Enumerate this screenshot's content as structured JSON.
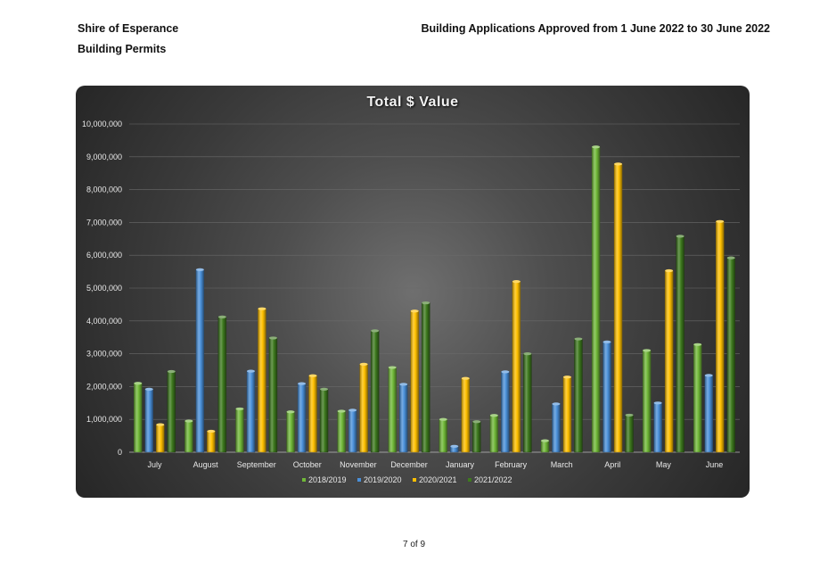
{
  "header": {
    "organisation": "Shire of Esperance",
    "department": "Building Permits",
    "report_title": "Building Applications Approved from 1 June 2022 to 30 June 2022"
  },
  "footer": {
    "page": "7 of 9"
  },
  "chart_data": {
    "type": "bar",
    "title": "Total $ Value",
    "xlabel": "",
    "ylabel": "",
    "ylim": [
      0,
      10000000
    ],
    "y_ticks": [
      "0",
      "1,000,000",
      "2,000,000",
      "3,000,000",
      "4,000,000",
      "5,000,000",
      "6,000,000",
      "7,000,000",
      "8,000,000",
      "9,000,000",
      "10,000,000"
    ],
    "grid": true,
    "legend_position": "bottom",
    "categories": [
      "July",
      "August",
      "September",
      "October",
      "November",
      "December",
      "January",
      "February",
      "March",
      "April",
      "May",
      "June"
    ],
    "series": [
      {
        "name": "2018/2019",
        "color": "#70b838",
        "values": [
          2100000,
          950000,
          1320000,
          1230000,
          1250000,
          2580000,
          1000000,
          1120000,
          350000,
          9300000,
          3100000,
          3280000
        ]
      },
      {
        "name": "2019/2020",
        "color": "#4a90d9",
        "values": [
          1920000,
          5560000,
          2470000,
          2090000,
          1280000,
          2070000,
          180000,
          2450000,
          1470000,
          3360000,
          1500000,
          2340000
        ]
      },
      {
        "name": "2020/2021",
        "color": "#ffc000",
        "values": [
          840000,
          640000,
          4370000,
          2330000,
          2680000,
          4300000,
          2250000,
          5200000,
          2290000,
          8780000,
          5530000,
          7030000
        ]
      },
      {
        "name": "2021/2022",
        "color": "#3e7a1e",
        "values": [
          2460000,
          4120000,
          3480000,
          1920000,
          3700000,
          4550000,
          930000,
          3000000,
          3450000,
          1130000,
          6580000,
          5920000
        ]
      }
    ]
  }
}
